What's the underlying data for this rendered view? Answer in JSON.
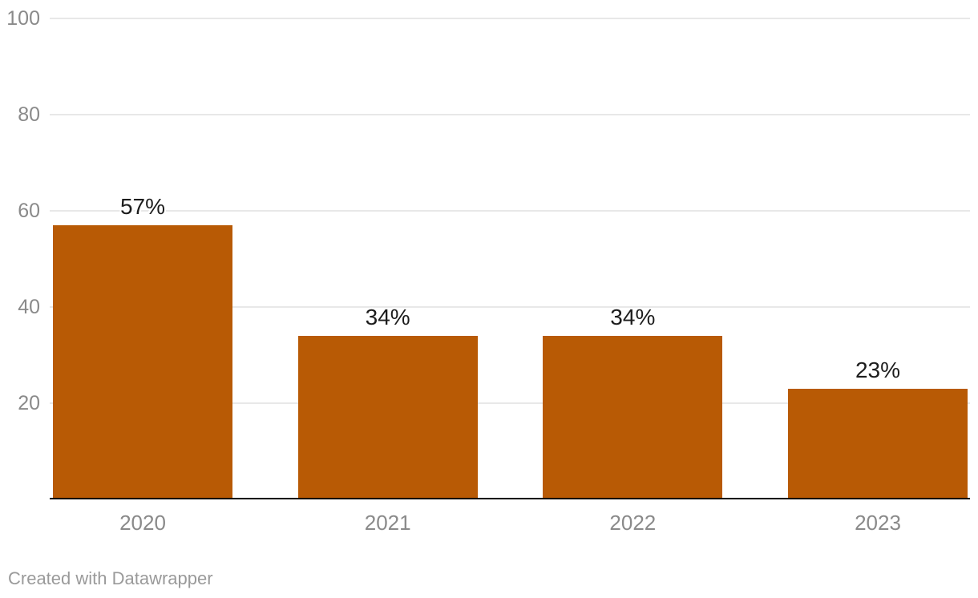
{
  "chart_data": {
    "type": "bar",
    "categories": [
      "2020",
      "2021",
      "2022",
      "2023"
    ],
    "values": [
      57,
      34,
      34,
      23
    ],
    "value_labels": [
      "57%",
      "34%",
      "34%",
      "23%"
    ],
    "title": "",
    "xlabel": "",
    "ylabel": "",
    "ylim": [
      0,
      100
    ],
    "yticks": [
      20,
      40,
      60,
      80,
      100
    ],
    "grid": true,
    "legend": "none",
    "bar_color": "#b85a05",
    "value_label_color": "#1d1d1d",
    "axis_text_color": "#8a8a8a",
    "gridline_color": "#e8e8e8",
    "baseline_color": "#000000"
  },
  "footer": {
    "attribution": "Created with Datawrapper"
  }
}
